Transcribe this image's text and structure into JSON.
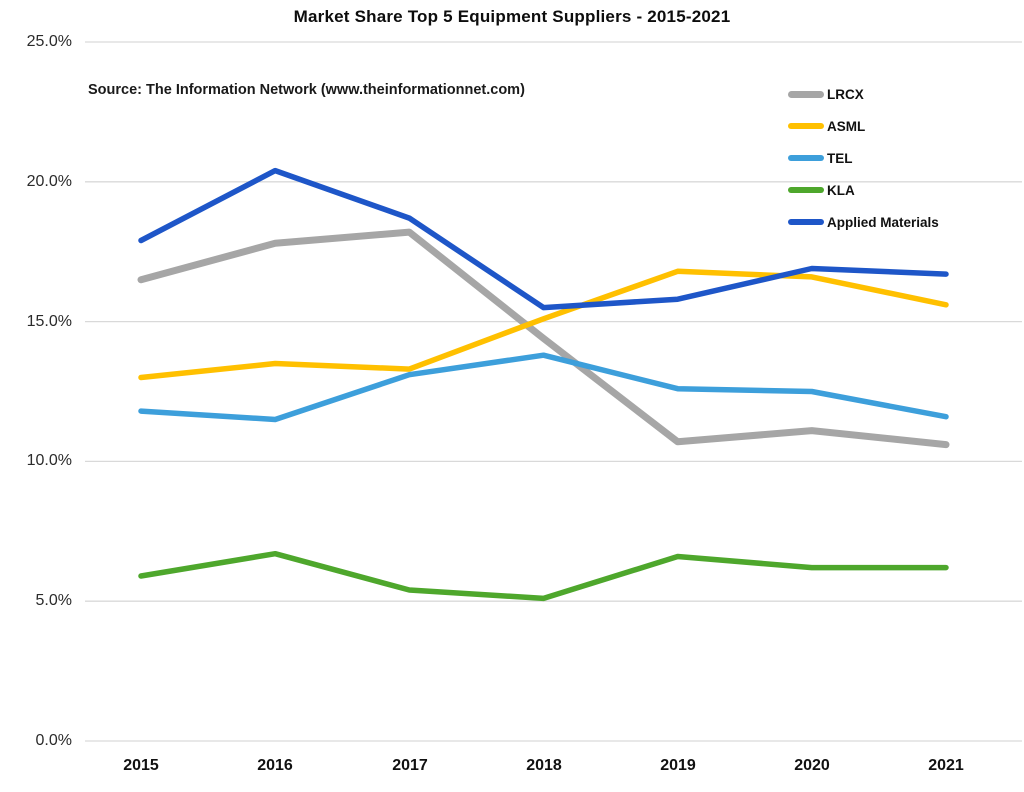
{
  "title": "Market Share Top 5 Equipment Suppliers - 2015-2021",
  "source_note": "Source: The Information Network (www.theinformationnet.com)",
  "chart_data": {
    "type": "line",
    "title": "Market Share Top 5 Equipment Suppliers - 2015-2021",
    "annotation": "Source: The Information Network (www.theinformationnet.com)",
    "categories": [
      "2015",
      "2016",
      "2017",
      "2018",
      "2019",
      "2020",
      "2021"
    ],
    "series": [
      {
        "name": "LRCX",
        "color": "#A6A6A6",
        "stroke_width": 7,
        "values": [
          16.5,
          17.8,
          18.2,
          14.4,
          10.7,
          11.1,
          10.6
        ]
      },
      {
        "name": "ASML",
        "color": "#FFC000",
        "stroke_width": 5.5,
        "values": [
          13.0,
          13.5,
          13.3,
          15.1,
          16.8,
          16.6,
          15.6
        ]
      },
      {
        "name": "TEL",
        "color": "#3D9FDB",
        "stroke_width": 5.5,
        "values": [
          11.8,
          11.5,
          13.1,
          13.8,
          12.6,
          12.5,
          11.6
        ]
      },
      {
        "name": "KLA",
        "color": "#4EA72C",
        "stroke_width": 5.5,
        "values": [
          5.9,
          6.7,
          5.4,
          5.1,
          6.6,
          6.2,
          6.2
        ]
      },
      {
        "name": "Applied Materials",
        "color": "#1E56C8",
        "stroke_width": 5.5,
        "values": [
          17.9,
          20.4,
          18.7,
          15.5,
          15.8,
          16.9,
          16.7
        ]
      }
    ],
    "xlabel": "",
    "ylabel": "",
    "ylim": [
      0,
      25
    ],
    "y_ticks": [
      0,
      5,
      10,
      15,
      20,
      25
    ],
    "y_tick_labels": [
      "0.0%",
      "5.0%",
      "10.0%",
      "15.0%",
      "20.0%",
      "25.0%"
    ],
    "grid": "horizontal",
    "gridline_color": "#D9D9D9",
    "legend_position": "right-top"
  }
}
